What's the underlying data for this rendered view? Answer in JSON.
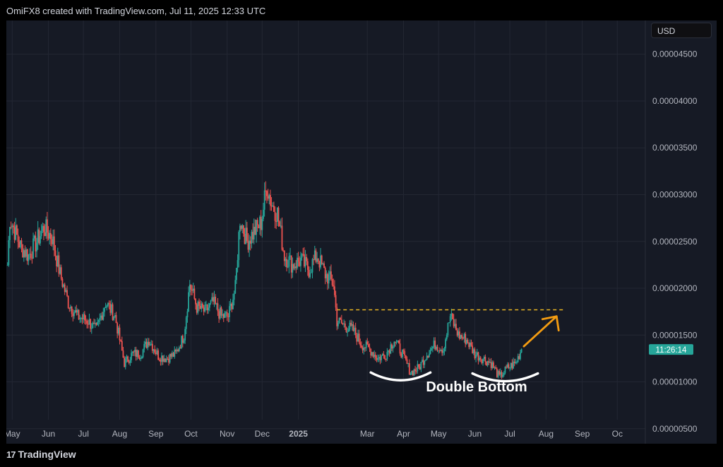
{
  "header": {
    "attribution": "OmiFX8 created with TradingView.com, Jul 11, 2025 12:33 UTC"
  },
  "currency_button": {
    "label": "USD"
  },
  "price_tag": {
    "label": "11:26:14"
  },
  "footer": {
    "logo_glyph": "17",
    "brand": "TradingView"
  },
  "annotation": {
    "pattern_label": "Double Bottom"
  },
  "colors": {
    "background": "#161a25",
    "grid": "#232733",
    "up": "#26a69a",
    "down": "#ef5350",
    "breakout_arrow": "#f39c12",
    "resistance_line": "#e6b422",
    "annotation_arc": "#ffffff",
    "axis_text": "#b2b5be"
  },
  "chart_data": {
    "type": "candlestick",
    "title": "",
    "xlabel": "",
    "ylabel": "",
    "y_axis_position": "right",
    "grid": true,
    "x_tick_labels": [
      "May",
      "Jun",
      "Jul",
      "Aug",
      "Sep",
      "Oct",
      "Nov",
      "Dec",
      "2025",
      "Mar",
      "Apr",
      "May",
      "Jun",
      "Jul",
      "Aug",
      "Sep",
      "Oc"
    ],
    "y_tick_labels": [
      "0.00000500",
      "0.00001000",
      "0.00001500",
      "0.00002000",
      "0.00002500",
      "0.00003000",
      "0.00003500",
      "0.00004000",
      "0.00004500"
    ],
    "y_ticks": [
      5e-06,
      1e-05,
      1.5e-05,
      2e-05,
      2.5e-05,
      3e-05,
      3.5e-05,
      4e-05,
      4.5e-05
    ],
    "ylim": [
      3.4e-06,
      4.86e-05
    ],
    "xlim": [
      "2024-04-26",
      "2025-10-25"
    ],
    "x_tick_dates": [
      "2024-05-01",
      "2024-06-01",
      "2024-07-01",
      "2024-08-01",
      "2024-09-01",
      "2024-10-01",
      "2024-11-01",
      "2024-12-01",
      "2025-01-01",
      "2025-03-01",
      "2025-04-01",
      "2025-05-01",
      "2025-06-01",
      "2025-07-01",
      "2025-08-01",
      "2025-09-01",
      "2025-10-01"
    ],
    "price_path": {
      "approximate": true,
      "points": [
        [
          "2024-04-27",
          2.25e-05
        ],
        [
          "2024-04-29",
          2.75e-05
        ],
        [
          "2024-05-08",
          2.45e-05
        ],
        [
          "2024-05-15",
          2.35e-05
        ],
        [
          "2024-05-22",
          2.5e-05
        ],
        [
          "2024-05-28",
          2.65e-05
        ],
        [
          "2024-06-04",
          2.55e-05
        ],
        [
          "2024-06-11",
          2.15e-05
        ],
        [
          "2024-06-18",
          1.85e-05
        ],
        [
          "2024-06-26",
          1.7e-05
        ],
        [
          "2024-07-05",
          1.65e-05
        ],
        [
          "2024-07-12",
          1.55e-05
        ],
        [
          "2024-07-20",
          1.85e-05
        ],
        [
          "2024-07-28",
          1.7e-05
        ],
        [
          "2024-08-05",
          1.2e-05
        ],
        [
          "2024-08-12",
          1.3e-05
        ],
        [
          "2024-08-19",
          1.3e-05
        ],
        [
          "2024-08-26",
          1.45e-05
        ],
        [
          "2024-09-03",
          1.28e-05
        ],
        [
          "2024-09-10",
          1.25e-05
        ],
        [
          "2024-09-18",
          1.3e-05
        ],
        [
          "2024-09-25",
          1.5e-05
        ],
        [
          "2024-09-30",
          2.05e-05
        ],
        [
          "2024-10-06",
          1.8e-05
        ],
        [
          "2024-10-13",
          1.75e-05
        ],
        [
          "2024-10-20",
          1.85e-05
        ],
        [
          "2024-10-27",
          1.7e-05
        ],
        [
          "2024-11-02",
          1.7e-05
        ],
        [
          "2024-11-08",
          2e-05
        ],
        [
          "2024-11-12",
          2.75e-05
        ],
        [
          "2024-11-18",
          2.5e-05
        ],
        [
          "2024-11-24",
          2.6e-05
        ],
        [
          "2024-11-30",
          2.7e-05
        ],
        [
          "2024-12-05",
          3.1e-05
        ],
        [
          "2024-12-09",
          2.9e-05
        ],
        [
          "2024-12-14",
          2.8e-05
        ],
        [
          "2024-12-20",
          2.35e-05
        ],
        [
          "2024-12-27",
          2.25e-05
        ],
        [
          "2025-01-03",
          2.3e-05
        ],
        [
          "2025-01-10",
          2.2e-05
        ],
        [
          "2025-01-17",
          2.35e-05
        ],
        [
          "2025-01-24",
          2.15e-05
        ],
        [
          "2025-01-31",
          2.05e-05
        ],
        [
          "2025-02-03",
          1.65e-05
        ],
        [
          "2025-02-10",
          1.6e-05
        ],
        [
          "2025-02-17",
          1.55e-05
        ],
        [
          "2025-02-24",
          1.4e-05
        ],
        [
          "2025-03-03",
          1.35e-05
        ],
        [
          "2025-03-10",
          1.25e-05
        ],
        [
          "2025-03-17",
          1.3e-05
        ],
        [
          "2025-03-24",
          1.45e-05
        ],
        [
          "2025-03-31",
          1.3e-05
        ],
        [
          "2025-04-07",
          1.1e-05
        ],
        [
          "2025-04-14",
          1.15e-05
        ],
        [
          "2025-04-21",
          1.3e-05
        ],
        [
          "2025-04-28",
          1.4e-05
        ],
        [
          "2025-05-05",
          1.35e-05
        ],
        [
          "2025-05-11",
          1.7e-05
        ],
        [
          "2025-05-18",
          1.5e-05
        ],
        [
          "2025-05-25",
          1.45e-05
        ],
        [
          "2025-06-01",
          1.3e-05
        ],
        [
          "2025-06-08",
          1.25e-05
        ],
        [
          "2025-06-15",
          1.2e-05
        ],
        [
          "2025-06-22",
          1.05e-05
        ],
        [
          "2025-06-29",
          1.15e-05
        ],
        [
          "2025-07-06",
          1.2e-05
        ],
        [
          "2025-07-11",
          1.35e-05
        ]
      ]
    },
    "resistance_line": {
      "start_date": "2025-02-03",
      "end_date": "2025-08-16",
      "value": 1.77e-05,
      "style": "dashed"
    },
    "breakout_arrow": {
      "from_date": "2025-07-13",
      "from_value": 1.38e-05,
      "to_date": "2025-08-10",
      "to_value": 1.7e-05
    },
    "double_bottom_troughs": [
      {
        "start_date": "2025-03-04",
        "end_date": "2025-04-24",
        "value": 1.07e-05
      },
      {
        "start_date": "2025-05-30",
        "end_date": "2025-07-25",
        "value": 1.06e-05
      }
    ],
    "last_value": 1.35e-05
  }
}
